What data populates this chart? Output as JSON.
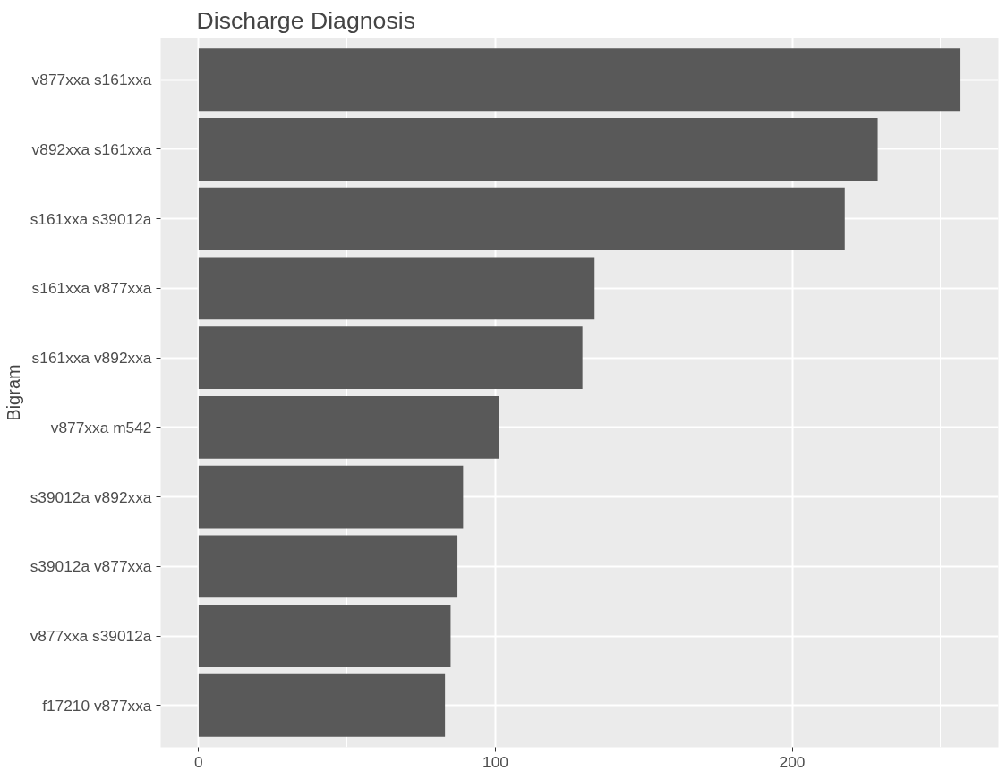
{
  "chart_data": {
    "type": "bar",
    "orientation": "horizontal",
    "title": "Discharge Diagnosis",
    "ylabel": "Bigram",
    "categories": [
      "v877xxa s161xxa",
      "v892xxa s161xxa",
      "s161xxa s39012a",
      "s161xxa v877xxa",
      "s161xxa v892xxa",
      "v877xxa m542",
      "s39012a v892xxa",
      "s39012a v877xxa",
      "v877xxa s39012a",
      "f17210 v877xxa"
    ],
    "values": [
      256.7,
      228.8,
      217.7,
      133.4,
      129.3,
      101.1,
      89.1,
      87.2,
      84.9,
      83.0
    ],
    "color": "#595959",
    "xlim": [
      -12.8,
      269.5
    ],
    "xticks": [
      0,
      100,
      200
    ],
    "grid": true
  }
}
